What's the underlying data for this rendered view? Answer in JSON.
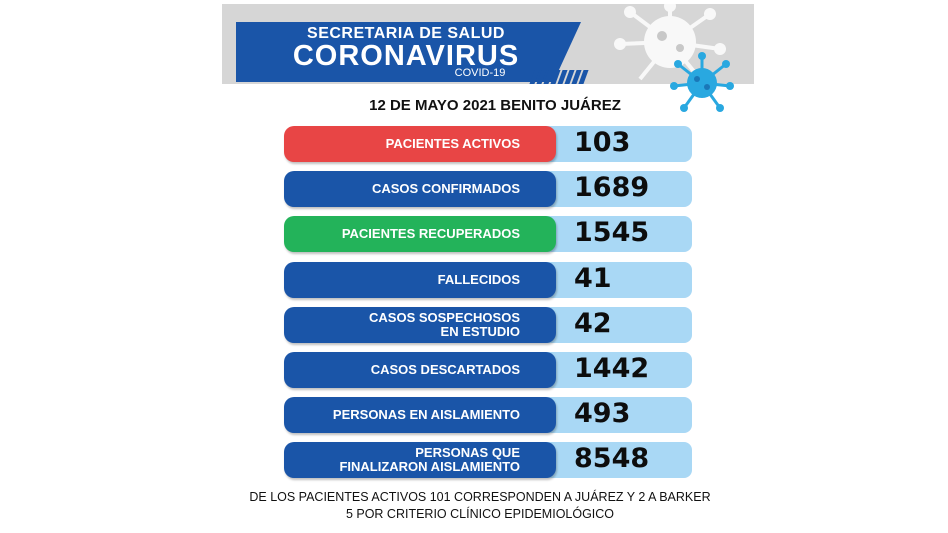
{
  "header": {
    "line1": "SECRETARIA DE SALUD",
    "line2": "CORONAVIRUS",
    "line3": "COVID-19",
    "colors": {
      "band": "#1a55a8",
      "background": "#d6d6d6"
    },
    "icons": [
      "coronavirus-icon"
    ]
  },
  "date_line": "12 DE MAYO 2021 BENITO JUÁREZ",
  "stats": [
    {
      "label_lines": [
        "PACIENTES ACTIVOS"
      ],
      "value": "103",
      "color": "#e84545"
    },
    {
      "label_lines": [
        "CASOS CONFIRMADOS"
      ],
      "value": "1689",
      "color": "#1a55a8"
    },
    {
      "label_lines": [
        "PACIENTES RECUPERADOS"
      ],
      "value": "1545",
      "color": "#23b35a"
    },
    {
      "label_lines": [
        "FALLECIDOS"
      ],
      "value": "41",
      "color": "#1a55a8"
    },
    {
      "label_lines": [
        "CASOS SOSPECHOSOS",
        "EN ESTUDIO"
      ],
      "value": "42",
      "color": "#1a55a8"
    },
    {
      "label_lines": [
        "CASOS DESCARTADOS"
      ],
      "value": "1442",
      "color": "#1a55a8"
    },
    {
      "label_lines": [
        "PERSONAS EN AISLAMIENTO"
      ],
      "value": "493",
      "color": "#1a55a8"
    },
    {
      "label_lines": [
        "PERSONAS QUE",
        "FINALIZARON AISLAMIENTO"
      ],
      "value": "8548",
      "color": "#1a55a8"
    }
  ],
  "footer": {
    "line1": "DE LOS PACIENTES ACTIVOS  101 CORRESPONDEN A JUÁREZ Y 2 A BARKER",
    "line2": "5 POR CRITERIO CLÍNICO EPIDEMIOLÓGICO"
  }
}
